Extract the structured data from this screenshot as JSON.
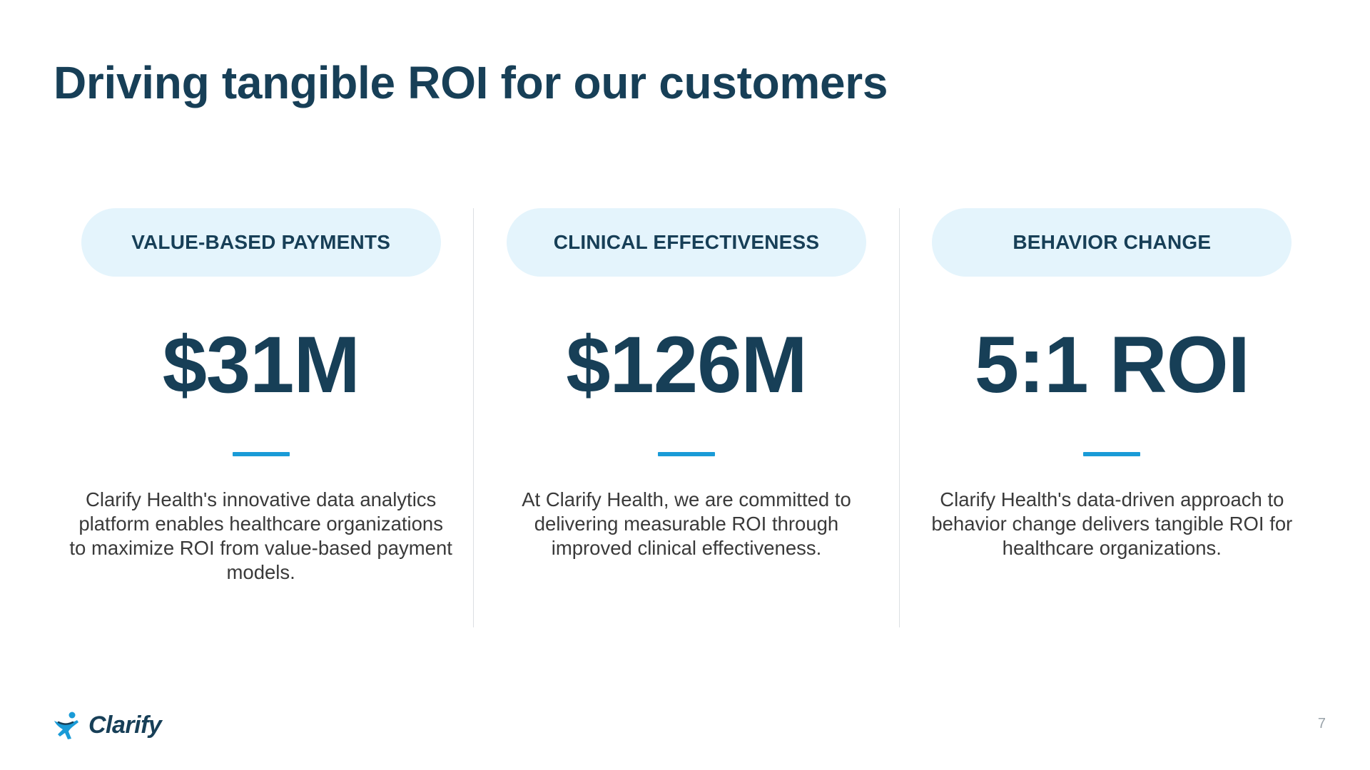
{
  "slide": {
    "title": "Driving tangible ROI for our customers",
    "page_number": "7"
  },
  "columns": [
    {
      "category": "VALUE-BASED PAYMENTS",
      "metric": "$31M",
      "description": "Clarify Health's innovative data analytics platform enables healthcare organizations to maximize ROI from value-based payment models."
    },
    {
      "category": "CLINICAL EFFECTIVENESS",
      "metric": "$126M",
      "description": "At Clarify Health, we are committed to delivering measurable ROI through improved clinical effectiveness."
    },
    {
      "category": "BEHAVIOR CHANGE",
      "metric": "5:1 ROI",
      "description": "Clarify Health's data-driven approach to behavior change delivers tangible ROI for healthcare organizations."
    }
  ],
  "footer": {
    "logo_text": "Clarify",
    "logo_icon": "clarify-figure-icon"
  },
  "colors": {
    "title_navy": "#173f57",
    "pill_background": "#e4f4fc",
    "accent_blue": "#1a9bd7",
    "body_text": "#3a3a3a",
    "column_divider": "#dcdfe3",
    "page_number": "#9aa3aa"
  }
}
